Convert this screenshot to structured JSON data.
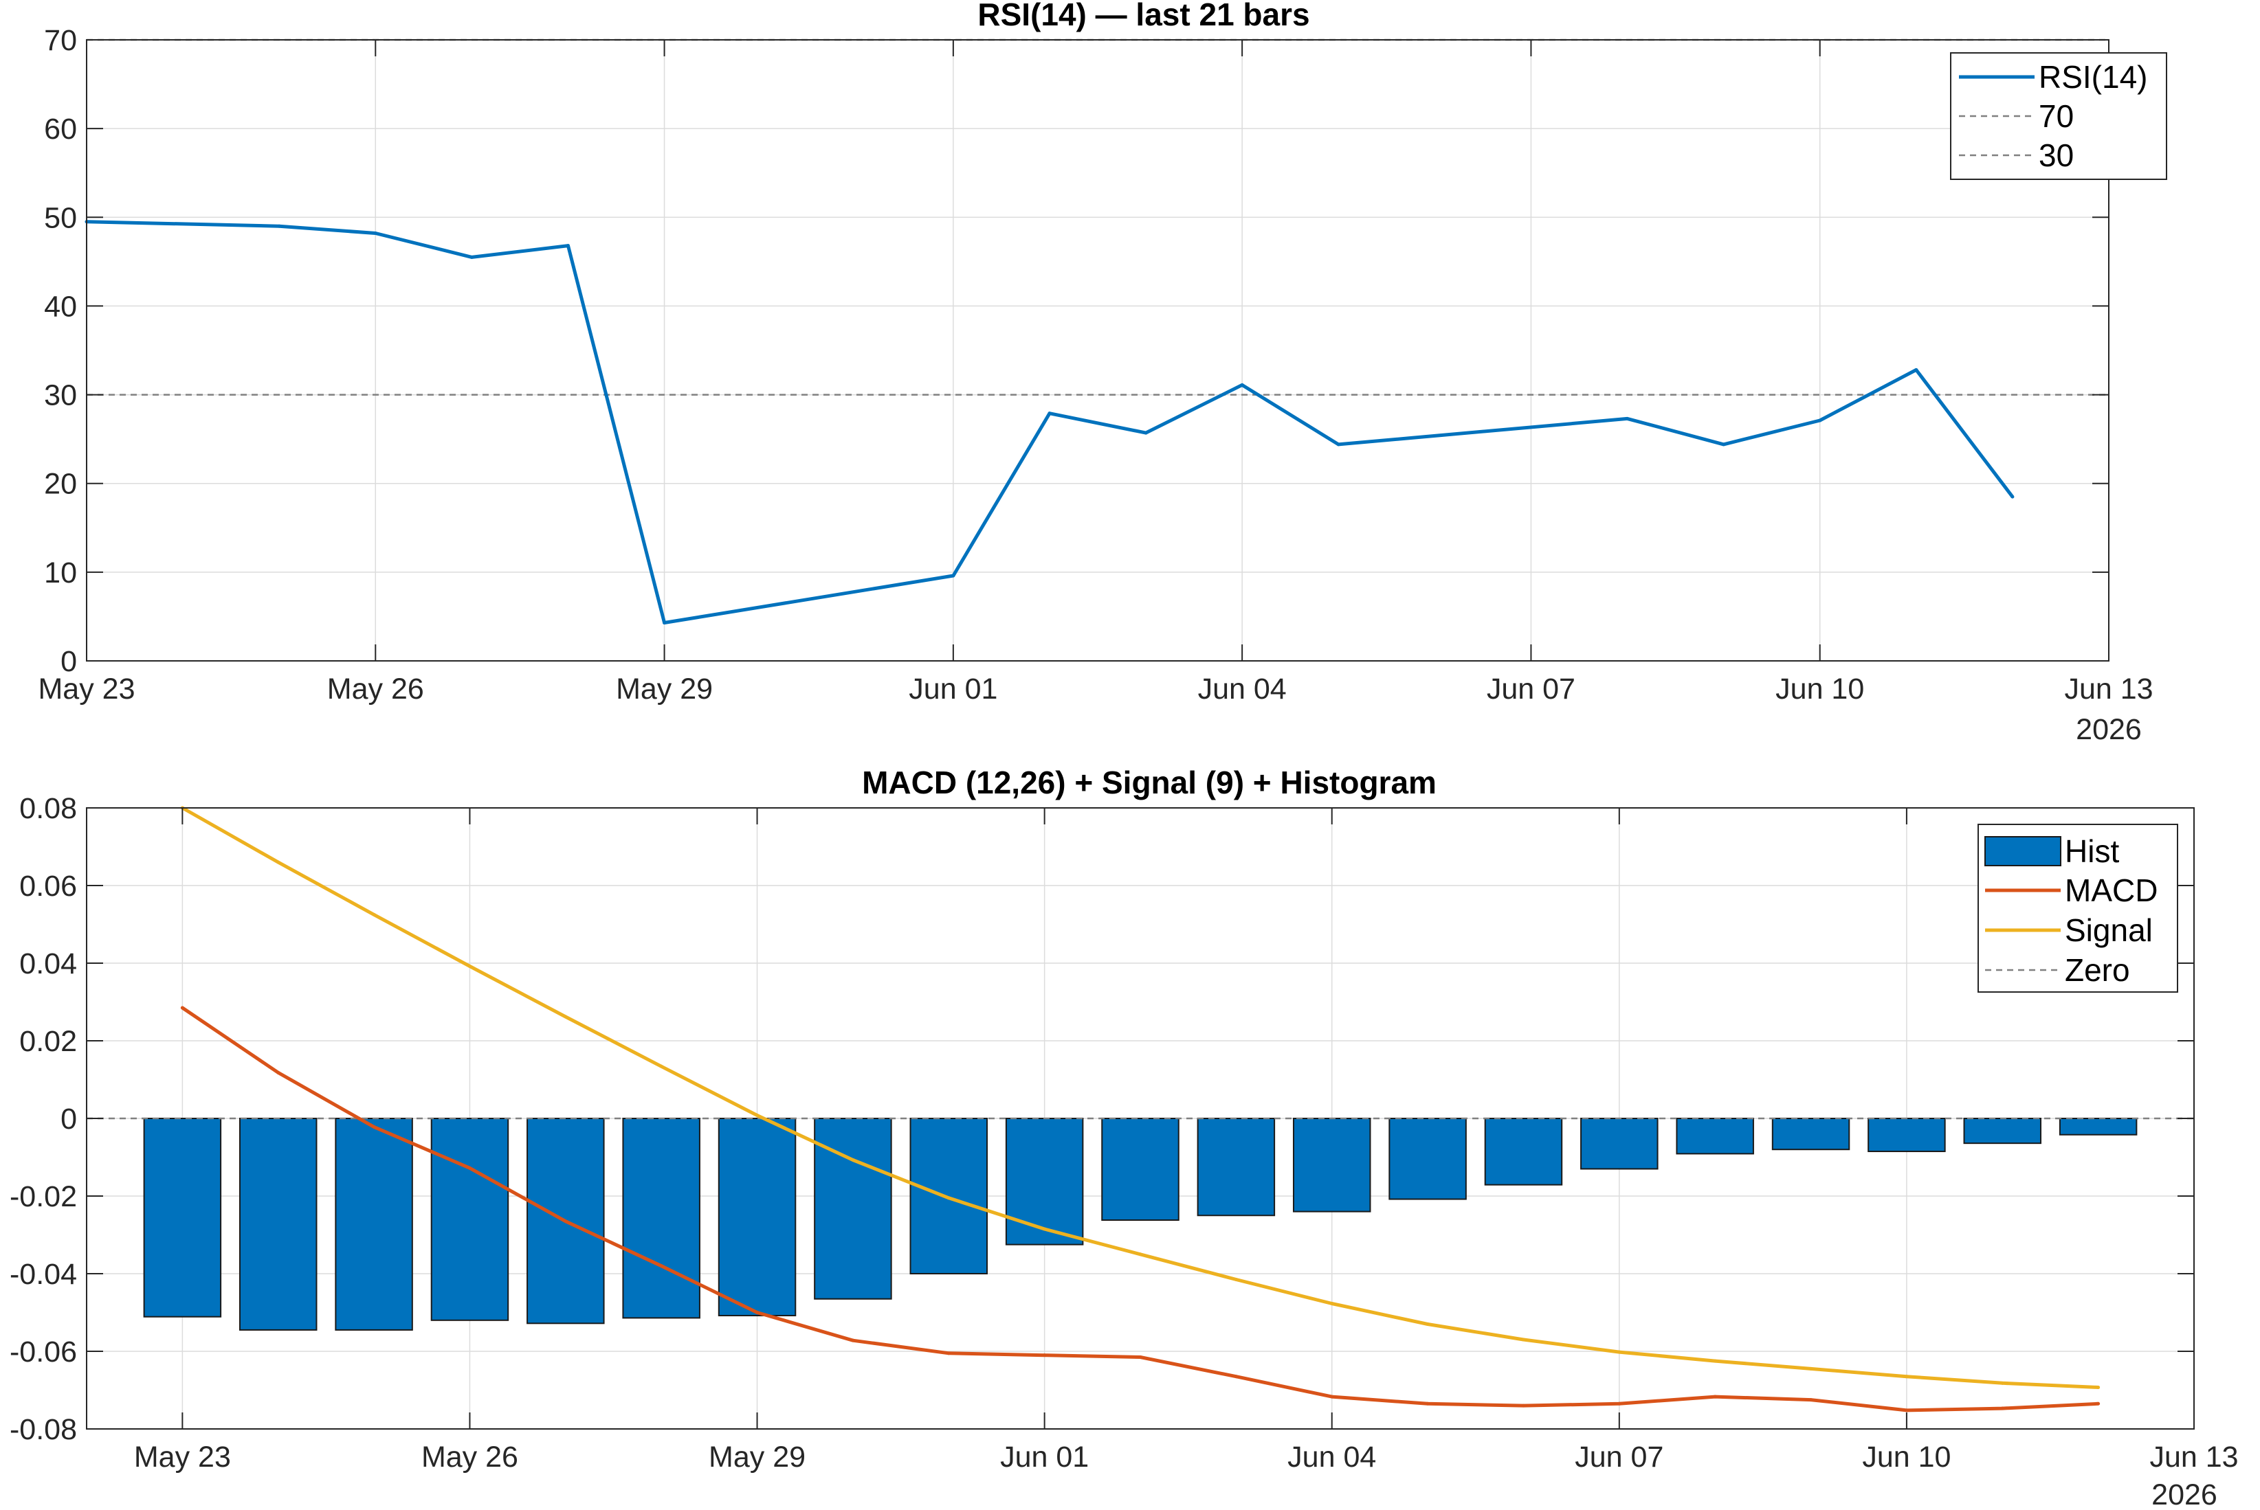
{
  "chart_data": [
    {
      "type": "line",
      "title": "RSI(14) — last 21 bars",
      "xlabel": "",
      "ylabel": "",
      "x_ticks": [
        "May 23",
        "May 26",
        "May 29",
        "Jun 01",
        "Jun 04",
        "Jun 07",
        "Jun 10",
        "Jun 13"
      ],
      "x_year_label": "2026",
      "xlim": [
        "2026-05-23",
        "2026-06-13"
      ],
      "ylim": [
        0,
        70
      ],
      "y_ticks": [
        0,
        10,
        20,
        30,
        40,
        50,
        60,
        70
      ],
      "grid": true,
      "legend_position": "top-right",
      "legend": [
        "RSI(14)",
        "70",
        "30"
      ],
      "reference_lines": [
        {
          "name": "70",
          "y": 70,
          "style": "dashed",
          "color": "#808080"
        },
        {
          "name": "30",
          "y": 30,
          "style": "dashed",
          "color": "#808080"
        }
      ],
      "series": [
        {
          "name": "RSI(14)",
          "color": "#0072BD",
          "x": [
            "2026-05-23",
            "2026-05-25",
            "2026-05-26",
            "2026-05-27",
            "2026-05-28",
            "2026-05-29",
            "2026-06-01",
            "2026-06-02",
            "2026-06-03",
            "2026-06-04",
            "2026-06-05",
            "2026-06-08",
            "2026-06-09",
            "2026-06-10",
            "2026-06-11",
            "2026-06-12"
          ],
          "values": [
            49.5,
            49.0,
            48.2,
            45.5,
            46.8,
            4.3,
            9.6,
            27.9,
            25.7,
            31.1,
            24.4,
            27.3,
            24.4,
            27.1,
            32.8,
            18.5
          ]
        }
      ]
    },
    {
      "type": "bar",
      "title": "MACD (12,26) + Signal (9) + Histogram",
      "xlabel": "",
      "ylabel": "",
      "x_ticks": [
        "May 23",
        "May 26",
        "May 29",
        "Jun 01",
        "Jun 04",
        "Jun 07",
        "Jun 10",
        "Jun 13"
      ],
      "x_year_label": "2026",
      "xlim": [
        "2026-05-22",
        "2026-06-13"
      ],
      "ylim": [
        -0.08,
        0.08
      ],
      "y_ticks": [
        "-0.08",
        "-0.06",
        "-0.04",
        "-0.02",
        "0",
        "0.02",
        "0.04",
        "0.06",
        "0.08"
      ],
      "grid": true,
      "legend_position": "top-right",
      "legend": [
        "Hist",
        "MACD",
        "Signal",
        "Zero"
      ],
      "x": [
        "2026-05-23",
        "2026-05-24",
        "2026-05-25",
        "2026-05-26",
        "2026-05-27",
        "2026-05-28",
        "2026-05-29",
        "2026-05-30",
        "2026-05-31",
        "2026-06-01",
        "2026-06-02",
        "2026-06-03",
        "2026-06-04",
        "2026-06-05",
        "2026-06-06",
        "2026-06-07",
        "2026-06-08",
        "2026-06-09",
        "2026-06-10",
        "2026-06-11",
        "2026-06-12"
      ],
      "series": [
        {
          "name": "Hist",
          "type": "bar",
          "color": "#0072BD",
          "values": [
            -0.0511,
            -0.0545,
            -0.0545,
            -0.052,
            -0.0528,
            -0.0514,
            -0.0508,
            -0.0465,
            -0.04,
            -0.0325,
            -0.0262,
            -0.025,
            -0.024,
            -0.0208,
            -0.0171,
            -0.013,
            -0.0091,
            -0.008,
            -0.0085,
            -0.0064,
            -0.0042
          ]
        },
        {
          "name": "MACD",
          "type": "line",
          "color": "#D95319",
          "values": [
            0.0285,
            0.0118,
            -0.0022,
            -0.0128,
            -0.0265,
            -0.038,
            -0.05,
            -0.0572,
            -0.0605,
            -0.061,
            -0.0615,
            -0.0665,
            -0.0717,
            -0.0735,
            -0.074,
            -0.0735,
            -0.0717,
            -0.0725,
            -0.0752,
            -0.0747,
            -0.0735
          ]
        },
        {
          "name": "Signal",
          "type": "line",
          "color": "#EDB120",
          "values": [
            0.08,
            0.066,
            0.0525,
            0.0392,
            0.0262,
            0.0134,
            0.0008,
            -0.0107,
            -0.0205,
            -0.0285,
            -0.035,
            -0.0415,
            -0.0477,
            -0.053,
            -0.057,
            -0.0602,
            -0.0625,
            -0.0645,
            -0.0665,
            -0.0682,
            -0.0693
          ]
        },
        {
          "name": "Zero",
          "type": "reference",
          "color": "#808080",
          "y": 0,
          "style": "dashed"
        }
      ]
    }
  ]
}
